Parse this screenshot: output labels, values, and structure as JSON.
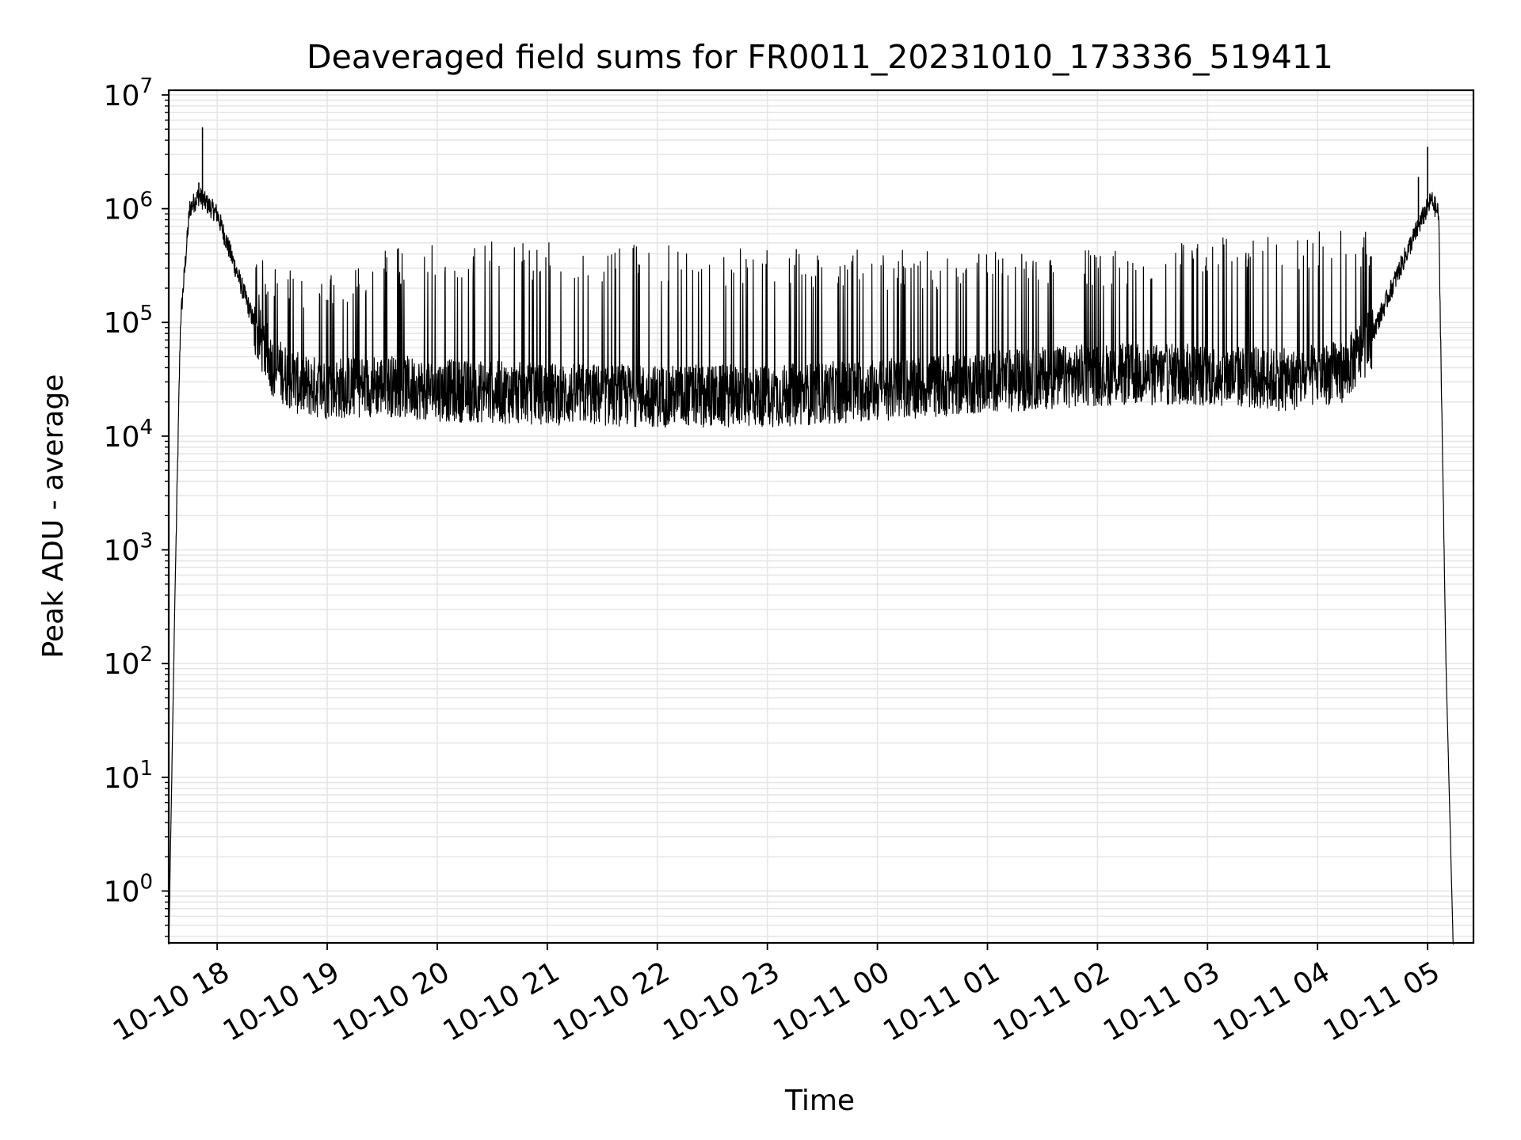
{
  "chart_data": {
    "type": "line",
    "title": "Deaveraged field sums for FR0011_20231010_173336_519411",
    "xlabel": "Time",
    "ylabel": "Peak ADU - average",
    "yscale": "log",
    "xlim": [
      "2023-10-10 17:33:36",
      "2023-10-11 05:25:00"
    ],
    "ylim": [
      0.35,
      11000000
    ],
    "grid": true,
    "line_color": "#000000",
    "x_ticks": [
      {
        "at": "2023-10-10 18:00",
        "label": "10-10 18"
      },
      {
        "at": "2023-10-10 19:00",
        "label": "10-10 19"
      },
      {
        "at": "2023-10-10 20:00",
        "label": "10-10 20"
      },
      {
        "at": "2023-10-10 21:00",
        "label": "10-10 21"
      },
      {
        "at": "2023-10-10 22:00",
        "label": "10-10 22"
      },
      {
        "at": "2023-10-10 23:00",
        "label": "10-10 23"
      },
      {
        "at": "2023-10-11 00:00",
        "label": "10-11 00"
      },
      {
        "at": "2023-10-11 01:00",
        "label": "10-11 01"
      },
      {
        "at": "2023-10-11 02:00",
        "label": "10-11 02"
      },
      {
        "at": "2023-10-11 03:00",
        "label": "10-11 03"
      },
      {
        "at": "2023-10-11 04:00",
        "label": "10-11 04"
      },
      {
        "at": "2023-10-11 05:00",
        "label": "10-11 05"
      }
    ],
    "y_ticks": [
      {
        "value": 1,
        "base": "10",
        "exp": "0"
      },
      {
        "value": 10,
        "base": "10",
        "exp": "1"
      },
      {
        "value": 100,
        "base": "10",
        "exp": "2"
      },
      {
        "value": 1000,
        "base": "10",
        "exp": "3"
      },
      {
        "value": 10000,
        "base": "10",
        "exp": "4"
      },
      {
        "value": 100000,
        "base": "10",
        "exp": "5"
      },
      {
        "value": 1000000,
        "base": "10",
        "exp": "6"
      },
      {
        "value": 10000000,
        "base": "10",
        "exp": "7"
      }
    ],
    "series": [
      {
        "baseline_envelope": {
          "x": [
            "2023-10-10 17:33:36",
            "2023-10-10 17:37",
            "2023-10-10 17:40",
            "2023-10-10 17:45",
            "2023-10-10 17:50",
            "2023-10-10 18:00",
            "2023-10-10 18:10",
            "2023-10-10 18:20",
            "2023-10-10 18:30",
            "2023-10-10 18:45",
            "2023-10-10 19:00",
            "2023-10-10 19:30",
            "2023-10-10 20:00",
            "2023-10-10 21:00",
            "2023-10-10 22:00",
            "2023-10-10 23:00",
            "2023-10-11 00:00",
            "2023-10-11 01:00",
            "2023-10-11 02:00",
            "2023-10-11 03:00",
            "2023-10-11 03:45",
            "2023-10-11 04:15",
            "2023-10-11 04:30",
            "2023-10-11 04:45",
            "2023-10-11 04:55",
            "2023-10-11 05:02",
            "2023-10-11 05:06",
            "2023-10-11 05:10",
            "2023-10-11 05:14"
          ],
          "y": [
            0.3,
            400,
            100000,
            1000000,
            1300000,
            900000,
            300000,
            100000,
            45000,
            30000,
            28000,
            30000,
            27000,
            25000,
            24000,
            24000,
            27000,
            32000,
            37000,
            37000,
            33000,
            40000,
            80000,
            300000,
            700000,
            1200000,
            900000,
            100,
            0.3
          ]
        },
        "peak_ceiling": {
          "x": [
            "2023-10-10 18:20",
            "2023-10-10 19:00",
            "2023-10-10 19:30",
            "2023-10-10 20:30",
            "2023-10-10 22:00",
            "2023-10-11 00:00",
            "2023-10-11 02:00",
            "2023-10-11 03:00",
            "2023-10-11 04:00",
            "2023-10-11 04:30"
          ],
          "y": [
            400000,
            250000,
            450000,
            520000,
            480000,
            430000,
            450000,
            550000,
            650000,
            700000
          ]
        },
        "spikes": [
          {
            "x": "2023-10-10 17:52",
            "y": 5200000
          },
          {
            "x": "2023-10-10 17:50",
            "y": 1700000
          },
          {
            "x": "2023-10-11 04:55",
            "y": 1900000
          },
          {
            "x": "2023-10-11 05:00",
            "y": 3500000
          }
        ]
      }
    ]
  }
}
